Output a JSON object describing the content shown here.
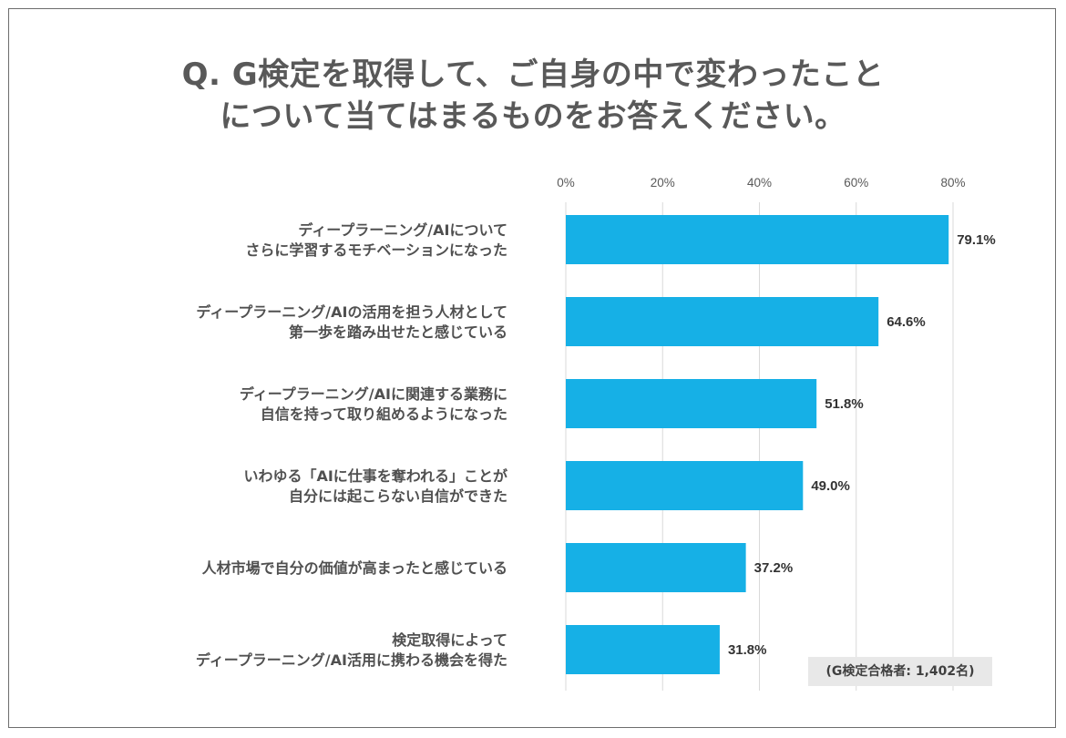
{
  "chart_data": {
    "type": "bar",
    "orientation": "horizontal",
    "title_lines": [
      "Q. G検定を取得して、ご自身の中で変わったこと",
      "について当てはまるものをお答えください。"
    ],
    "categories": [
      [
        "ディープラーニング/AIについて",
        "さらに学習するモチベーションになった"
      ],
      [
        "ディープラーニング/AIの活用を担う人材として",
        "第一歩を踏み出せたと感じている"
      ],
      [
        "ディープラーニング/AIに関連する業務に",
        "自信を持って取り組めるようになった"
      ],
      [
        "いわゆる「AIに仕事を奪われる」ことが",
        "自分には起こらない自信ができた"
      ],
      [
        "人材市場で自分の価値が高まったと感じている"
      ],
      [
        "検定取得によって",
        "ディープラーニング/AI活用に携わる機会を得た"
      ]
    ],
    "values": [
      79.1,
      64.6,
      51.8,
      49.0,
      37.2,
      31.8
    ],
    "value_labels": [
      "79.1%",
      "64.6%",
      "51.8%",
      "49.0%",
      "37.2%",
      "31.8%"
    ],
    "xlim": [
      0,
      80
    ],
    "x_ticks": [
      0,
      20,
      40,
      60,
      80
    ],
    "x_tick_labels": [
      "0%",
      "20%",
      "40%",
      "60%",
      "80%"
    ],
    "axis_position": "top",
    "grid": true,
    "bar_color": "#16b0e6",
    "grid_color": "#d9d9d9",
    "note": "(G検定合格者: 1,402名)"
  }
}
